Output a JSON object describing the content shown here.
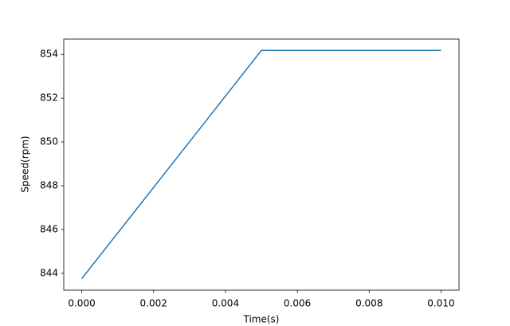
{
  "chart_data": {
    "type": "line",
    "x_label": "Time(s)",
    "y_label": "Speed(rpm)",
    "x": [
      0,
      0.005,
      0.01
    ],
    "series": [
      {
        "color": "#1f77b4",
        "values": [
          843.75,
          854.18,
          854.18
        ]
      }
    ],
    "xlim": [
      -0.0005,
      0.0105
    ],
    "xticks": [
      {
        "value": 0,
        "label": "0.000"
      },
      {
        "value": 0.002,
        "label": "0.002"
      },
      {
        "value": 0.004,
        "label": "0.004"
      },
      {
        "value": 0.006,
        "label": "0.006"
      },
      {
        "value": 0.008,
        "label": "0.008"
      },
      {
        "value": 0.01,
        "label": "0.010"
      }
    ],
    "ylim": [
      843.23,
      854.7
    ],
    "yticks": [
      844,
      846,
      848,
      850,
      852,
      854
    ],
    "grid": false
  }
}
